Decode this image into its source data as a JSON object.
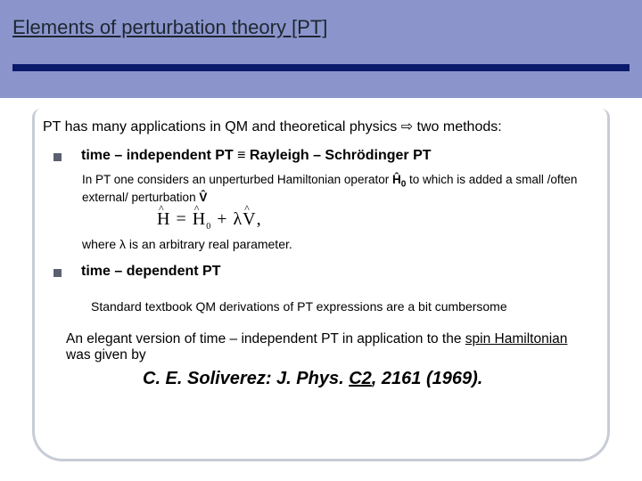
{
  "colors": {
    "header_bg": "#8b95cc",
    "title_text": "#1f2630",
    "blue_bar": "#0a1a6b",
    "panel_border": "#c7ccd6",
    "bullet": "#5b6070",
    "body_text": "#000000"
  },
  "title": "Elements of perturbation theory [PT]",
  "intro_pre": "PT has many applications in QM and theoretical physics ",
  "intro_arrow": "⇨",
  "intro_post": " two methods:",
  "method1": {
    "label_pre": "time – independent PT ",
    "equiv": "≡",
    "label_post": "  Rayleigh – Schrödinger PT",
    "desc_pre": "In PT one considers an unperturbed Hamiltonian operator ",
    "desc_H0": "Ĥ",
    "desc_H0_sub": "0",
    "desc_mid": " to which is added a small /often external/ perturbation ",
    "desc_V": "V̂",
    "formula_H": "H",
    "formula_eq1": " = ",
    "formula_H0": "H",
    "formula_sub0": "0",
    "formula_plus": " + λ",
    "formula_V": "V",
    "formula_tail": ",",
    "lambda_note": "where λ is an arbitrary real parameter."
  },
  "method2": {
    "label": "time – dependent PT"
  },
  "std_line": "Standard textbook QM derivations of PT expressions are a bit cumbersome",
  "elegant_pre": "An elegant version of time – independent PT in application to the ",
  "elegant_u1": "spin Hamiltonian",
  "elegant_post": " was given by",
  "ref_pre": "C. E.  Soliverez: J. Phys. ",
  "ref_u": "C2",
  "ref_post": ", 2161 (1969).",
  "fontsize": {
    "title": 22,
    "intro": 16,
    "row": 16,
    "sub": 13.5,
    "formula": 20,
    "note2": 14,
    "std": 14,
    "elegant": 15.5,
    "ref": 20
  }
}
